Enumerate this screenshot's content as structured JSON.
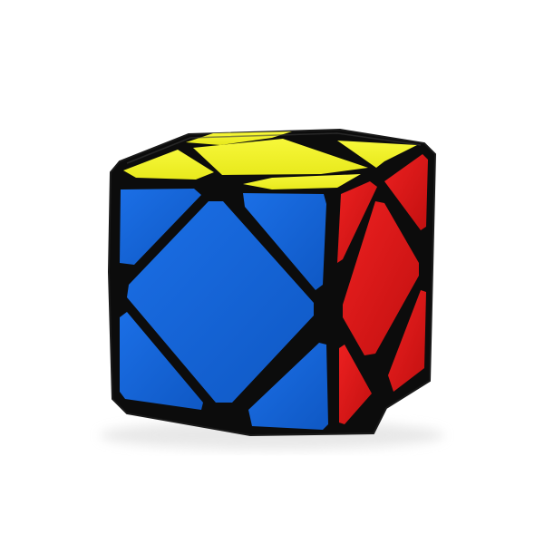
{
  "image": {
    "subject": "skewb-puzzle-cube",
    "background_color": "#ffffff"
  },
  "colors": {
    "body": "#0c0c0c",
    "body_edge": "#1a1a1a",
    "top": "#f2f31f",
    "top_shade": "#dfe01a",
    "front": "#1564d6",
    "front_shade": "#0f55bd",
    "right": "#e01818",
    "right_shade": "#b80f0f",
    "shadow": "#e9e9e9"
  },
  "faces": {
    "top": {
      "color_name": "yellow",
      "sticker_count": 5
    },
    "front": {
      "color_name": "blue",
      "sticker_count": 5
    },
    "right": {
      "color_name": "red",
      "sticker_count": 5
    }
  }
}
